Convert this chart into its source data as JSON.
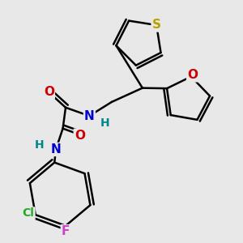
{
  "bg_color": "#e8e8e8",
  "atom_colors": {
    "S": "#b8a000",
    "O": "#cc0000",
    "N": "#0000cc",
    "Cl": "#22aa22",
    "F": "#cc44cc",
    "C": "#000000",
    "H": "#008888"
  },
  "bond_color": "#000000",
  "bond_width": 1.8,
  "fig_size": [
    3.0,
    3.0
  ],
  "dpi": 100,
  "font_size_atom": 11
}
